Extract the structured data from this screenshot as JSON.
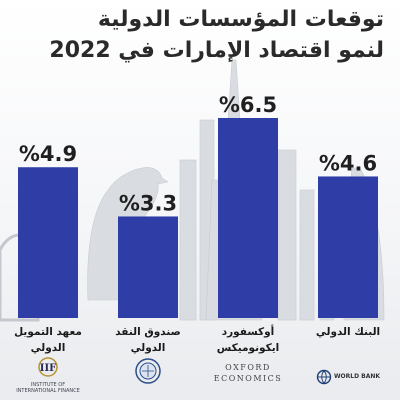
{
  "title": {
    "line1": "توقعات المؤسسات الدولية",
    "line2": "لنمو اقتصاد الإمارات في 2022"
  },
  "chart_data": {
    "type": "bar",
    "title": "توقعات المؤسسات الدولية لنمو اقتصاد الإمارات في 2022",
    "categories": [
      "معهد التمويل الدولي",
      "صندوق النقد الدولي",
      "أوكسفورد ايكونوميكس",
      "البنك الدولي"
    ],
    "values": [
      4.9,
      3.3,
      6.5,
      4.6
    ],
    "value_labels": [
      "%4.9",
      "%3.3",
      "%6.5",
      "%4.6"
    ],
    "unit": "%",
    "ylim": [
      0,
      8
    ],
    "bar_color": "#2e3ea6",
    "grid": false,
    "legend": "none"
  },
  "institutions": [
    {
      "label": "معهد التمويل\nالدولي",
      "logo_text": "IIF",
      "logo_caption": "INSTITUTE OF\nINTERNATIONAL FINANCE",
      "icon": "iif-logo-icon"
    },
    {
      "label": "صندوق النقد\nالدولي",
      "logo_text": "",
      "logo_caption": "",
      "icon": "imf-seal-icon"
    },
    {
      "label": "أوكسفورد\nايكونوميكس",
      "logo_text": "OXFORD\nECONOMICS",
      "logo_caption": "",
      "icon": "oxford-economics-logo-icon"
    },
    {
      "label": "البنك الدولي",
      "logo_text": "WORLD BANK",
      "logo_caption": "",
      "icon": "world-bank-globe-icon"
    }
  ],
  "colors": {
    "bar": "#2e3ea6",
    "title": "#2a2a2a",
    "skyline": "#d3d6db",
    "gold": "#b8942f"
  }
}
